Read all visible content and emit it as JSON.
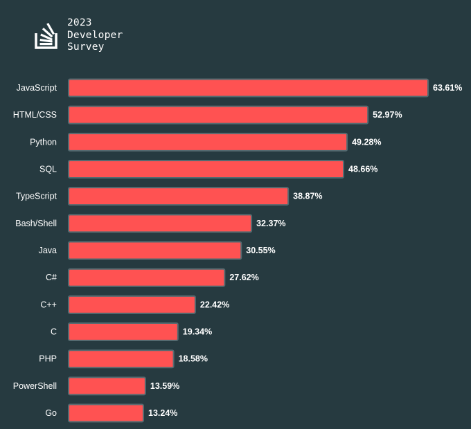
{
  "header": {
    "year": "2023",
    "line1": "Developer",
    "line2": "Survey"
  },
  "colors": {
    "background": "#263a40",
    "bar": "#ff5252",
    "bar_border": "#556a70",
    "text": "#ffffff"
  },
  "chart_data": {
    "type": "bar",
    "orientation": "horizontal",
    "title": "2023 Developer Survey",
    "xlabel": "",
    "ylabel": "",
    "xlim": [
      0,
      63.61
    ],
    "grid": false,
    "categories": [
      "JavaScript",
      "HTML/CSS",
      "Python",
      "SQL",
      "TypeScript",
      "Bash/Shell",
      "Java",
      "C#",
      "C++",
      "C",
      "PHP",
      "PowerShell",
      "Go"
    ],
    "values": [
      63.61,
      52.97,
      49.28,
      48.66,
      38.87,
      32.37,
      30.55,
      27.62,
      22.42,
      19.34,
      18.58,
      13.59,
      13.24
    ],
    "labels": [
      "63.61%",
      "52.97%",
      "49.28%",
      "48.66%",
      "38.87%",
      "32.37%",
      "30.55%",
      "27.62%",
      "22.42%",
      "19.34%",
      "18.58%",
      "13.59%",
      "13.24%"
    ]
  }
}
